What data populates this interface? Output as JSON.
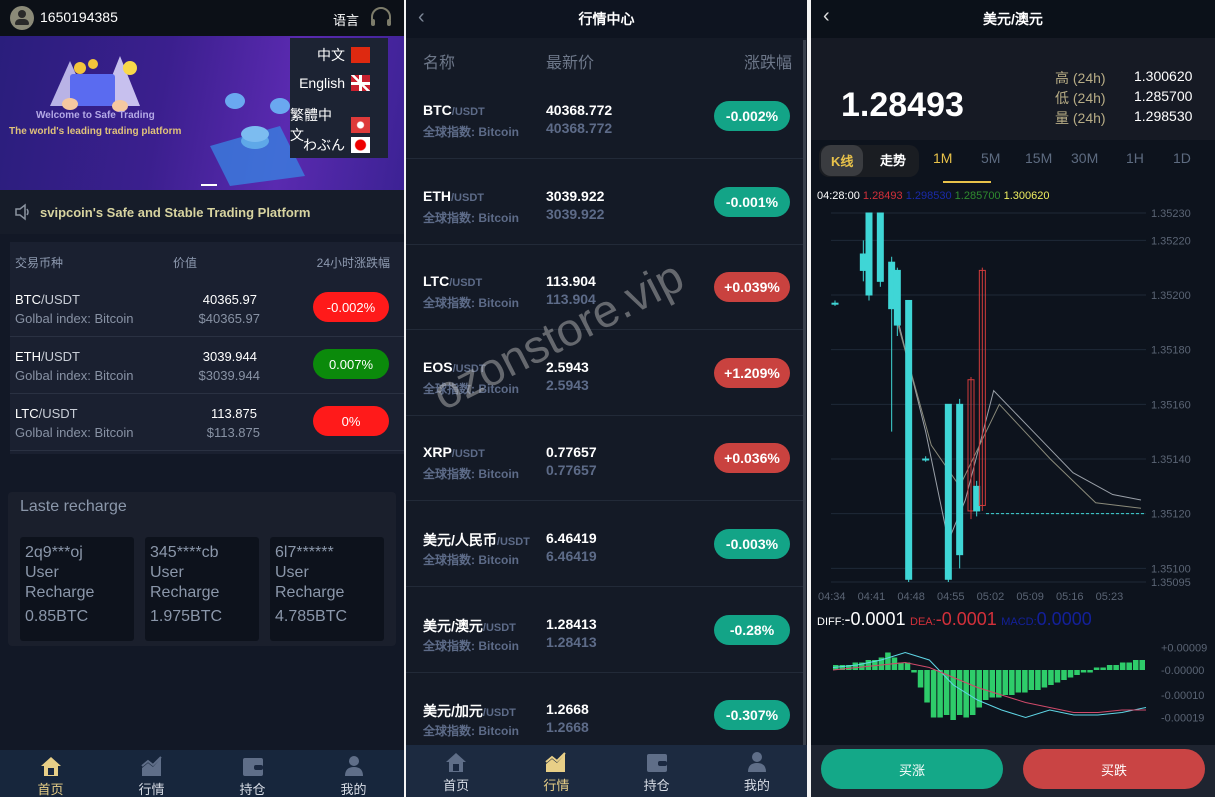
{
  "home": {
    "user_id": "1650194385",
    "language_label": "语言",
    "banner": {
      "line1": "Welcome to Safe Trading",
      "line2": "The world's leading trading platform"
    },
    "languages": [
      {
        "label": "中文",
        "flag": "cn"
      },
      {
        "label": "English",
        "flag": "uk"
      },
      {
        "label": "繁體中文",
        "flag": "hk"
      },
      {
        "label": "わぶん",
        "flag": "jp"
      }
    ],
    "notice": "svipcoin's Safe and Stable Trading Platform",
    "market_headers": [
      "交易币种",
      "价值",
      "24小时涨跌幅"
    ],
    "market_rows": [
      {
        "base": "BTC",
        "quote": "/USDT",
        "sub": "Golbal index: Bitcoin",
        "price": "40365.97",
        "usd": "$40365.97",
        "change": "-0.002%",
        "color": "#ff1a1a"
      },
      {
        "base": "ETH",
        "quote": "/USDT",
        "sub": "Golbal index: Bitcoin",
        "price": "3039.944",
        "usd": "$3039.944",
        "change": "0.007%",
        "color": "#0b8a0b"
      },
      {
        "base": "LTC",
        "quote": "/USDT",
        "sub": "Golbal index: Bitcoin",
        "price": "113.875",
        "usd": "$113.875",
        "change": "0%",
        "color": "#ff1a1a"
      }
    ],
    "recharge_title": "Laste recharge",
    "recharges": [
      {
        "user": "2q9***oj",
        "l1": "User",
        "l2": "Recharge",
        "amount": "0.85BTC"
      },
      {
        "user": "345****cb",
        "l1": "User",
        "l2": "Recharge",
        "amount": "1.975BTC"
      },
      {
        "user": "6l7******",
        "l1": "User",
        "l2": "Recharge",
        "amount": "4.785BTC"
      }
    ],
    "nav": [
      {
        "label": "首页",
        "icon": "home-icon",
        "active": true
      },
      {
        "label": "行情",
        "icon": "chart-icon"
      },
      {
        "label": "持仓",
        "icon": "wallet-icon"
      },
      {
        "label": "我的",
        "icon": "user-icon"
      }
    ]
  },
  "quotes": {
    "title": "行情中心",
    "headers": [
      "名称",
      "最新价",
      "涨跌幅"
    ],
    "index_label": "全球指数: Bitcoin",
    "rows": [
      {
        "base": "BTC",
        "quote": "/USDT",
        "price": "40368.772",
        "price2": "40368.772",
        "change": "-0.002%",
        "dir": "down"
      },
      {
        "base": "ETH",
        "quote": "/USDT",
        "price": "3039.922",
        "price2": "3039.922",
        "change": "-0.001%",
        "dir": "down"
      },
      {
        "base": "LTC",
        "quote": "/USDT",
        "price": "113.904",
        "price2": "113.904",
        "change": "+0.039%",
        "dir": "up"
      },
      {
        "base": "EOS",
        "quote": "/USDT",
        "price": "2.5943",
        "price2": "2.5943",
        "change": "+1.209%",
        "dir": "up"
      },
      {
        "base": "XRP",
        "quote": "/USDT",
        "price": "0.77657",
        "price2": "0.77657",
        "change": "+0.036%",
        "dir": "up"
      },
      {
        "base": "美元/人民币",
        "quote": "/USDT",
        "price": "6.46419",
        "price2": "6.46419",
        "change": "-0.003%",
        "dir": "down"
      },
      {
        "base": "美元/澳元",
        "quote": "/USDT",
        "price": "1.28413",
        "price2": "1.28413",
        "change": "-0.28%",
        "dir": "down"
      },
      {
        "base": "美元/加元",
        "quote": "/USDT",
        "price": "1.2668",
        "price2": "1.2668",
        "change": "-0.307%",
        "dir": "down"
      }
    ],
    "watermark": "ozonstore.vip",
    "nav": [
      {
        "label": "首页"
      },
      {
        "label": "行情",
        "active": true
      },
      {
        "label": "持仓"
      },
      {
        "label": "我的"
      }
    ],
    "colors": {
      "up": "#c9423f",
      "down": "#13a487"
    }
  },
  "detail": {
    "title": "美元/澳元",
    "price": "1.28493",
    "stats": [
      {
        "label": "高 (24h)",
        "value": "1.300620"
      },
      {
        "label": "低 (24h)",
        "value": "1.285700"
      },
      {
        "label": "量 (24h)",
        "value": "1.298530"
      }
    ],
    "tabs": [
      {
        "label": "K线"
      },
      {
        "label": "走势"
      },
      {
        "label": "1M",
        "active": true
      },
      {
        "label": "5M"
      },
      {
        "label": "15M"
      },
      {
        "label": "30M"
      },
      {
        "label": "1H"
      },
      {
        "label": "1D"
      }
    ],
    "readout": {
      "time": "04:28:00",
      "open": "1.28493",
      "close": "1.298530",
      "low": "1.285700",
      "high": "1.300620"
    },
    "macd_labels": {
      "diff_label": "DIFF:",
      "diff": "-0.0001",
      "dea_label": "DEA:",
      "dea": "-0.0001",
      "macd_label": "MACD:",
      "macd": "0.0000"
    },
    "buy_up": "买涨",
    "buy_down": "买跌"
  },
  "chart_data": [
    {
      "type": "candlestick",
      "y_ticks": [
        "1.35230",
        "1.35220",
        "1.35200",
        "1.35180",
        "1.35160",
        "1.35140",
        "1.35120",
        "1.35100",
        "1.35095"
      ],
      "x_ticks": [
        "04:34",
        "04:41",
        "04:48",
        "04:55",
        "05:02",
        "05:09",
        "05:16",
        "05:23"
      ],
      "ylim": [
        1.35095,
        1.3523
      ],
      "xlim": [
        "04:34",
        "05:28"
      ],
      "candles": [
        {
          "t": "04:34",
          "o": 1.35197,
          "c": 1.35197,
          "h": 1.35198,
          "l": 1.35196
        },
        {
          "t": "04:39",
          "o": 1.35215,
          "c": 1.35209,
          "h": 1.3522,
          "l": 1.35205
        },
        {
          "t": "04:40",
          "o": 1.3523,
          "c": 1.352,
          "h": 1.3523,
          "l": 1.35198
        },
        {
          "t": "04:42",
          "o": 1.3523,
          "c": 1.35205,
          "h": 1.3523,
          "l": 1.35203
        },
        {
          "t": "04:44",
          "o": 1.35212,
          "c": 1.35195,
          "h": 1.35214,
          "l": 1.3515
        },
        {
          "t": "04:45",
          "o": 1.35209,
          "c": 1.35189,
          "h": 1.3521,
          "l": 1.35185
        },
        {
          "t": "04:47",
          "o": 1.35198,
          "c": 1.35096,
          "h": 1.35198,
          "l": 1.35095
        },
        {
          "t": "04:50",
          "o": 1.3514,
          "c": 1.3514,
          "h": 1.35141,
          "l": 1.35139
        },
        {
          "t": "04:54",
          "o": 1.3516,
          "c": 1.35096,
          "h": 1.3516,
          "l": 1.35095
        },
        {
          "t": "04:56",
          "o": 1.3516,
          "c": 1.35105,
          "h": 1.35162,
          "l": 1.351
        },
        {
          "t": "04:58",
          "o": 1.35121,
          "c": 1.35169,
          "h": 1.3517,
          "l": 1.35118
        },
        {
          "t": "04:59",
          "o": 1.3513,
          "c": 1.35121,
          "h": 1.35132,
          "l": 1.35119
        },
        {
          "t": "05:00",
          "o": 1.35123,
          "c": 1.35209,
          "h": 1.3521,
          "l": 1.35121
        }
      ],
      "last_price": 1.3512,
      "ma": [
        [
          [
            "04:44",
            1.352
          ],
          [
            "04:50",
            1.3515
          ],
          [
            "04:54",
            1.3511
          ],
          [
            "04:57",
            1.35125
          ],
          [
            "05:02",
            1.35165
          ],
          [
            "05:09",
            1.3515
          ],
          [
            "05:16",
            1.35135
          ],
          [
            "05:23",
            1.35127
          ],
          [
            "05:28",
            1.35125
          ]
        ],
        [
          [
            "04:45",
            1.3519
          ],
          [
            "04:51",
            1.35145
          ],
          [
            "04:56",
            1.3513
          ],
          [
            "05:03",
            1.3516
          ],
          [
            "05:12",
            1.3514
          ],
          [
            "05:20",
            1.35124
          ],
          [
            "05:28",
            1.35122
          ]
        ]
      ]
    },
    {
      "type": "macd",
      "y_ticks": [
        "+0.00009",
        "-0.00000",
        "-0.00010",
        "-0.00019"
      ],
      "ylim": [
        -0.00022,
        0.00012
      ],
      "histogram": [
        2e-05,
        2e-05,
        2e-05,
        3e-05,
        3e-05,
        4e-05,
        4e-05,
        5e-05,
        7e-05,
        5e-05,
        3e-05,
        3e-05,
        -1e-05,
        -7e-05,
        -0.00013,
        -0.00019,
        -0.00019,
        -0.00018,
        -0.0002,
        -0.00018,
        -0.00019,
        -0.00018,
        -0.00015,
        -0.00012,
        -0.00011,
        -0.00011,
        -0.0001,
        -0.0001,
        -9e-05,
        -9e-05,
        -8e-05,
        -8e-05,
        -7e-05,
        -6e-05,
        -5e-05,
        -4e-05,
        -3e-05,
        -2e-05,
        -1e-05,
        -1e-05,
        1e-05,
        1e-05,
        2e-05,
        2e-05,
        3e-05,
        3e-05,
        4e-05,
        4e-05
      ],
      "diff": [
        1e-05,
        2e-05,
        4e-05,
        7e-05,
        4e-05,
        -6e-05,
        -0.00012,
        -0.00016,
        -0.00019,
        -0.00016,
        -0.00018,
        -0.00018,
        -0.00017,
        -0.00015
      ],
      "dea": [
        0.0,
        1e-05,
        2e-05,
        3e-05,
        1e-05,
        -3e-05,
        -7e-05,
        -0.0001,
        -0.00013,
        -0.00015,
        -0.00017,
        -0.00017,
        -0.00016,
        -0.00016
      ]
    }
  ]
}
